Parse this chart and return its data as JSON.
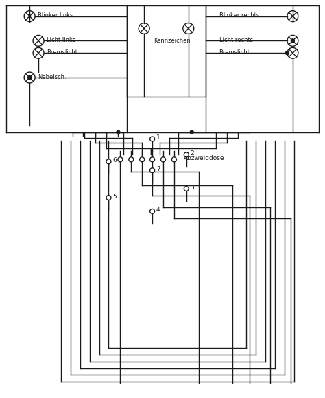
{
  "bg_color": "#ffffff",
  "line_color": "#1a1a1a",
  "lw": 1.0,
  "labels": {
    "blinker_links": "Blinker links",
    "licht_links": "Licht links",
    "bremslicht_links": "Bremslicht",
    "nebelsch": "Nebelsch.",
    "kennzeichen": "Kennzeichen",
    "blinker_rechts": "Blinker rechts",
    "licht_rechts": "Licht rechts",
    "bremslicht_rechts": "Bremslicht",
    "abzweigdose": "Abzweigdose"
  },
  "lamp_r": 8,
  "pin_r": 3.5,
  "dot_r": 2.5,
  "fontsize_label": 6.0,
  "fontsize_pin": 6.5
}
